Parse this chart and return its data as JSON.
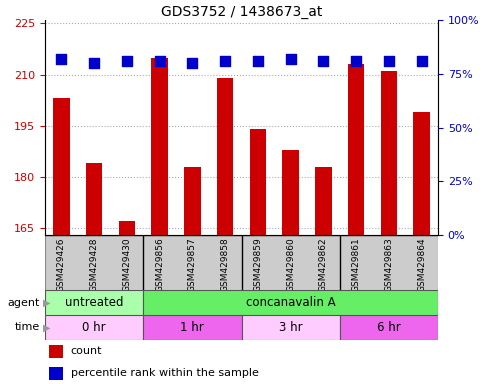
{
  "title": "GDS3752 / 1438673_at",
  "samples": [
    "GSM429426",
    "GSM429428",
    "GSM429430",
    "GSM429856",
    "GSM429857",
    "GSM429858",
    "GSM429859",
    "GSM429860",
    "GSM429862",
    "GSM429861",
    "GSM429863",
    "GSM429864"
  ],
  "counts": [
    203,
    184,
    167,
    215,
    183,
    209,
    194,
    188,
    183,
    213,
    211,
    199
  ],
  "percentile_ranks": [
    82,
    80,
    81,
    81,
    80,
    81,
    81,
    82,
    81,
    81,
    81,
    81
  ],
  "ylim_left": [
    163,
    226
  ],
  "ylim_right": [
    0,
    100
  ],
  "yticks_left": [
    165,
    180,
    195,
    210,
    225
  ],
  "yticks_right": [
    0,
    25,
    50,
    75,
    100
  ],
  "bar_color": "#cc0000",
  "dot_color": "#0000cc",
  "grid_color": "#aaaaaa",
  "bg_color": "#ffffff",
  "agent_groups": [
    {
      "label": "untreated",
      "start": 0,
      "end": 3,
      "color": "#aaffaa"
    },
    {
      "label": "concanavalin A",
      "start": 3,
      "end": 12,
      "color": "#66ee66"
    }
  ],
  "time_groups": [
    {
      "label": "0 hr",
      "start": 0,
      "end": 3,
      "color": "#ffccff"
    },
    {
      "label": "1 hr",
      "start": 3,
      "end": 6,
      "color": "#ee66ee"
    },
    {
      "label": "3 hr",
      "start": 6,
      "end": 9,
      "color": "#ffccff"
    },
    {
      "label": "6 hr",
      "start": 9,
      "end": 12,
      "color": "#ee66ee"
    }
  ],
  "left_axis_color": "#cc0000",
  "right_axis_color": "#0000cc",
  "bar_width": 0.5,
  "dot_size": 50,
  "group_sep_color": "#000000",
  "tick_bg_color": "#cccccc",
  "tick_border_color": "#888888"
}
